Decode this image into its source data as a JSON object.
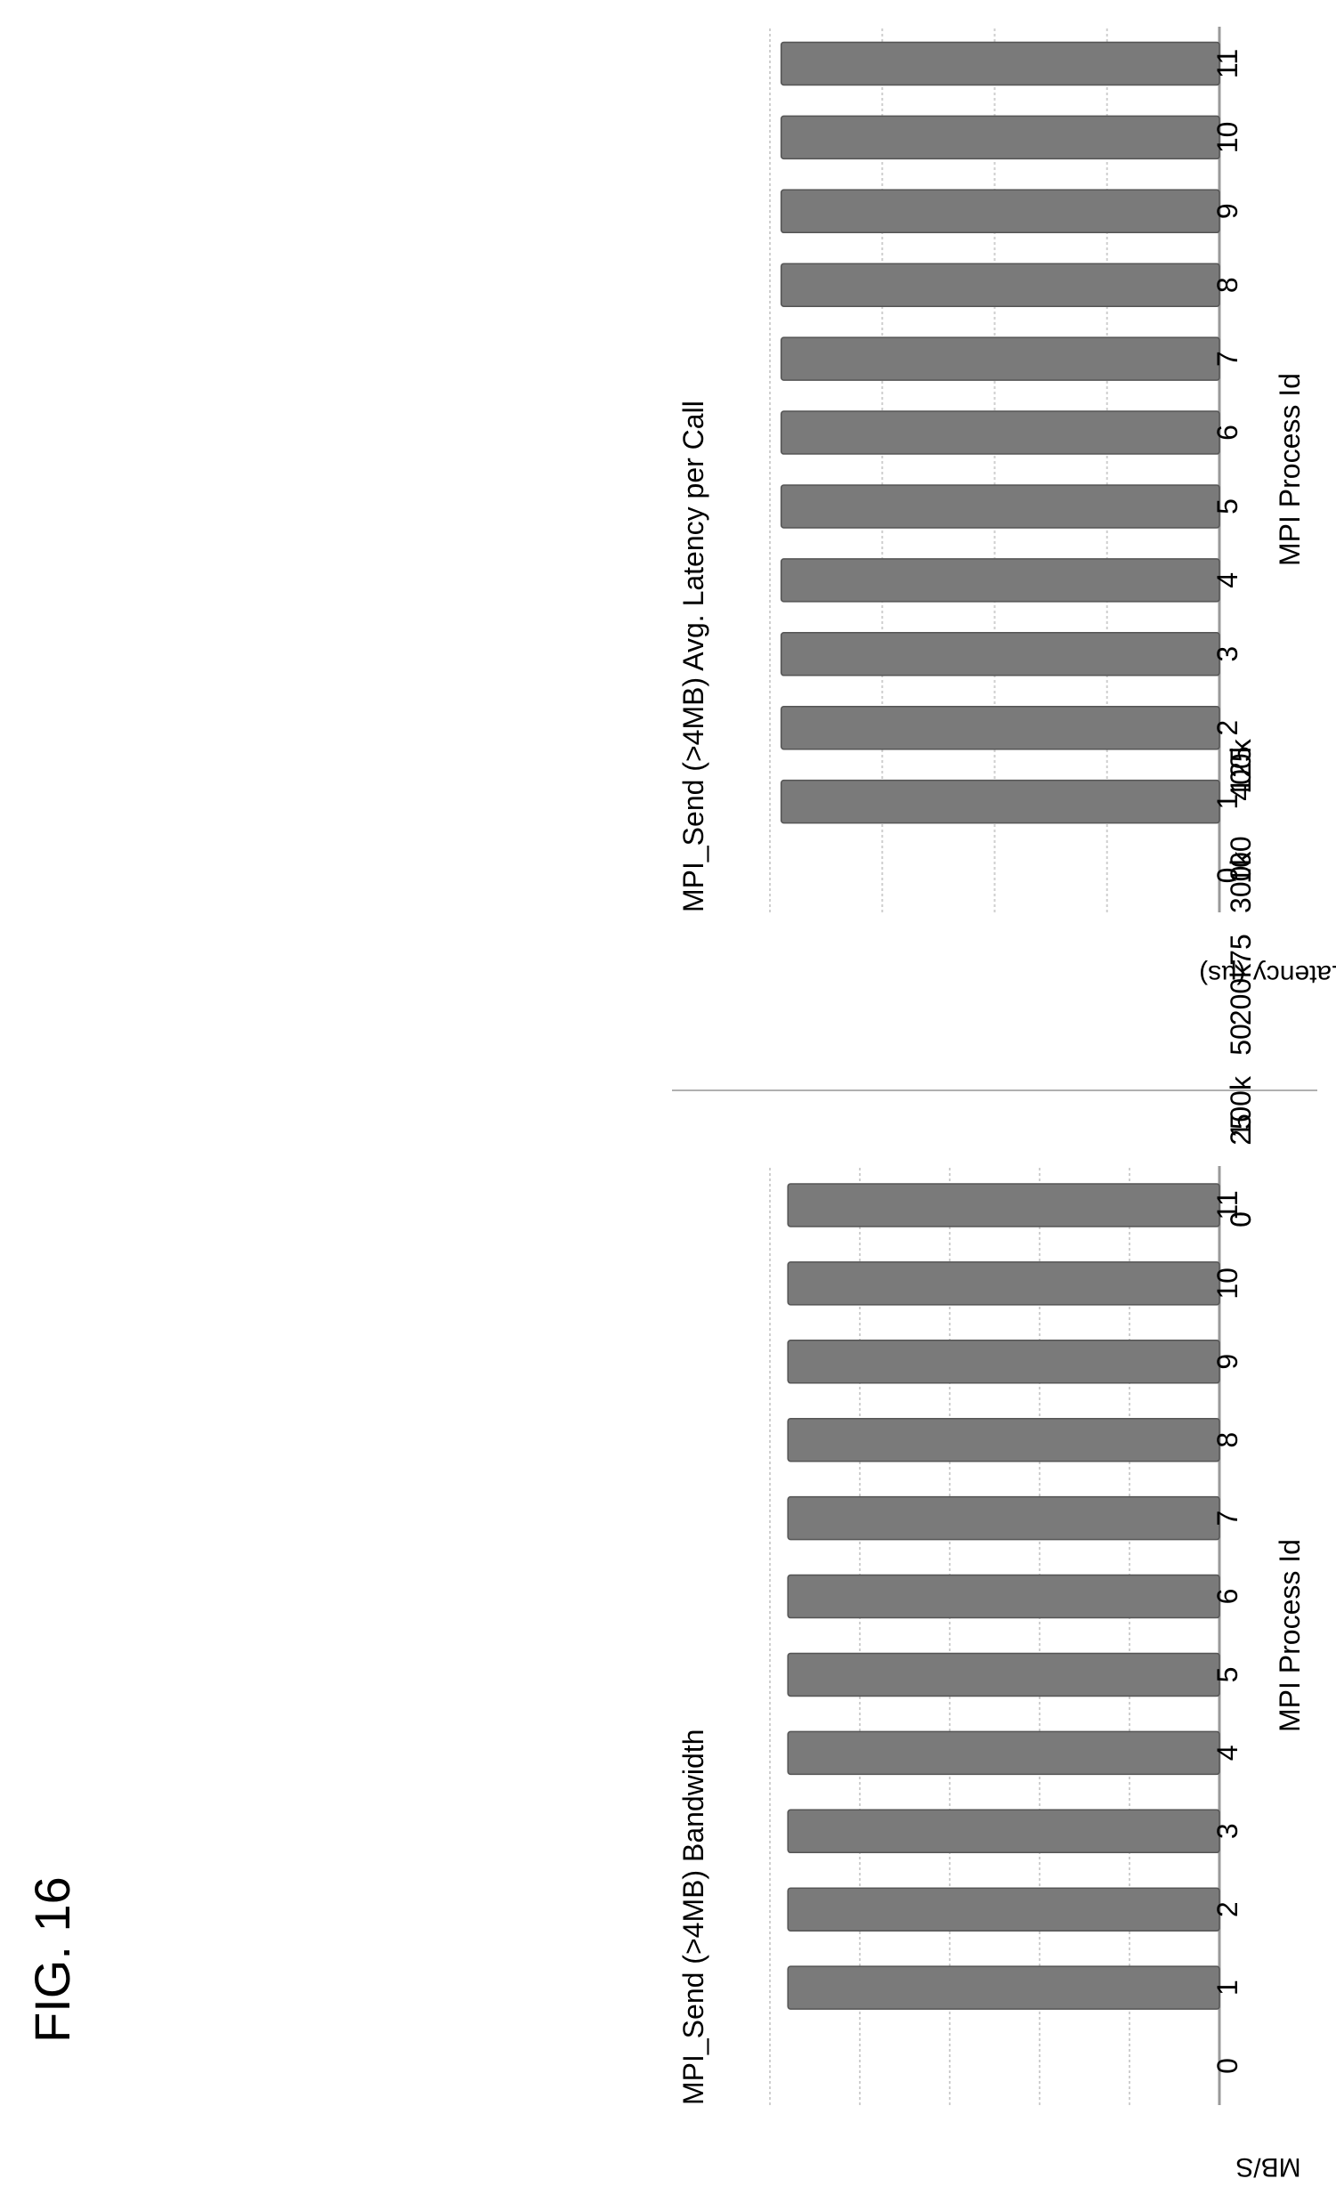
{
  "figure_label": "FIG. 16",
  "colors": {
    "bar": "#7a7a7a",
    "bar_edge": "#555555",
    "axis": "#999999",
    "grid": "#cfcfcf",
    "divider": "#b0b0b0"
  },
  "chart_data": [
    {
      "type": "bar",
      "orientation": "rotated-90",
      "title": "MPI_Send (>4MB) Bandwidth",
      "xlabel": "MPI Process Id",
      "ylabel": "MB/S",
      "categories": [
        "0",
        "1",
        "2",
        "3",
        "4",
        "5",
        "6",
        "7",
        "8",
        "9",
        "10",
        "11"
      ],
      "values": [
        0,
        120,
        120,
        120,
        120,
        120,
        120,
        120,
        120,
        120,
        120,
        120
      ],
      "ylim": [
        0,
        125
      ],
      "yticks": [
        "0",
        "25",
        "50",
        "75",
        "100",
        "125"
      ],
      "grid": true
    },
    {
      "type": "bar",
      "orientation": "rotated-90",
      "title": "MPI_Send (>4MB) Avg. Latency per Call",
      "xlabel": "MPI Process Id",
      "ylabel": "Latency (µs)",
      "categories": [
        "0",
        "1",
        "2",
        "3",
        "4",
        "5",
        "6",
        "7",
        "8",
        "9",
        "10",
        "11"
      ],
      "values": [
        0,
        390000,
        390000,
        390000,
        390000,
        390000,
        390000,
        390000,
        390000,
        390000,
        390000,
        390000
      ],
      "ylim": [
        0,
        400000
      ],
      "yticks": [
        "0",
        "100k",
        "200k",
        "300k",
        "400k"
      ],
      "grid": true
    }
  ]
}
